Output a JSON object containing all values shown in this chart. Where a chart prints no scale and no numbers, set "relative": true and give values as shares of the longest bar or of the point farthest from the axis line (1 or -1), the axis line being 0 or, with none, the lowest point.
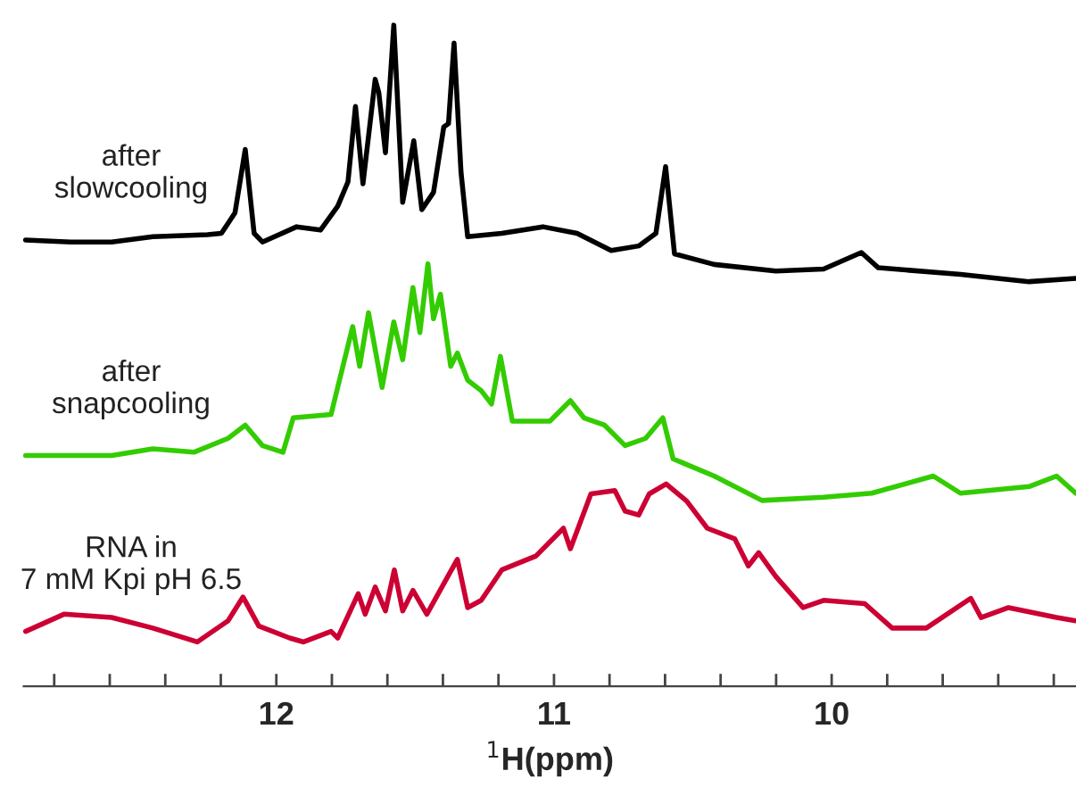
{
  "chart_data": {
    "type": "line",
    "relative": true,
    "xlabel": "$^{1}$H(ppm)",
    "xlim": [
      12.91,
      9.12
    ],
    "xticks": [
      {
        "value": 12.8,
        "label": null
      },
      {
        "value": 12.6,
        "label": null
      },
      {
        "value": 12.4,
        "label": null
      },
      {
        "value": 12.2,
        "label": null
      },
      12,
      {
        "value": 11.8,
        "label": null
      },
      {
        "value": 11.6,
        "label": null
      },
      {
        "value": 11.4,
        "label": null
      },
      {
        "value": 11.2,
        "label": null
      },
      11,
      {
        "value": 10.8,
        "label": null
      },
      {
        "value": 10.6,
        "label": null
      },
      {
        "value": 10.4,
        "label": null
      },
      {
        "value": 10.2,
        "label": null
      },
      10,
      {
        "value": 9.8,
        "label": null
      },
      {
        "value": 9.6,
        "label": null
      },
      {
        "value": 9.4,
        "label": null
      },
      {
        "value": 9.2,
        "label": null
      }
    ],
    "tick_labels": "x",
    "grid": false,
    "legend": false,
    "line_style": "solid",
    "marker": "none",
    "series": [
      {
        "name": "after\nslowcooling",
        "color": "#000000",
        "x": [
          12.903,
          12.741,
          12.593,
          12.445,
          12.248,
          12.198,
          12.149,
          12.112,
          12.08,
          12.05,
          11.927,
          11.841,
          11.779,
          11.742,
          11.715,
          11.688,
          11.644,
          11.631,
          11.607,
          11.577,
          11.545,
          11.505,
          11.476,
          11.434,
          11.397,
          11.38,
          11.36,
          11.335,
          11.311,
          11.188,
          11.04,
          10.917,
          10.794,
          10.695,
          10.633,
          10.598,
          10.566,
          10.423,
          10.201,
          10.029,
          9.893,
          9.832,
          9.536,
          9.289,
          9.121
        ],
        "values": [
          0.675,
          0.672,
          0.672,
          0.68,
          0.683,
          0.685,
          0.716,
          0.812,
          0.685,
          0.672,
          0.695,
          0.69,
          0.726,
          0.763,
          0.877,
          0.76,
          0.918,
          0.898,
          0.807,
          1,
          0.732,
          0.825,
          0.721,
          0.747,
          0.846,
          0.851,
          0.973,
          0.778,
          0.68,
          0.685,
          0.695,
          0.685,
          0.659,
          0.666,
          0.685,
          0.786,
          0.654,
          0.638,
          0.628,
          0.631,
          0.656,
          0.633,
          0.623,
          0.612,
          0.617
        ]
      },
      {
        "name": "after\nsnapcooling",
        "color": "#33cc00",
        "x": [
          12.903,
          12.741,
          12.593,
          12.445,
          12.297,
          12.174,
          12.112,
          12.05,
          11.976,
          11.939,
          11.803,
          11.779,
          11.725,
          11.7,
          11.668,
          11.619,
          11.577,
          11.545,
          11.508,
          11.483,
          11.454,
          11.434,
          11.409,
          11.372,
          11.348,
          11.311,
          11.262,
          11.225,
          11.193,
          11.15,
          11.015,
          10.941,
          10.892,
          10.818,
          10.744,
          10.67,
          10.608,
          10.571,
          10.423,
          10.251,
          10.029,
          9.856,
          9.634,
          9.536,
          9.289,
          9.19,
          9.121
        ],
        "values": [
          0.349,
          0.349,
          0.349,
          0.359,
          0.354,
          0.375,
          0.395,
          0.364,
          0.354,
          0.406,
          0.411,
          0.452,
          0.544,
          0.484,
          0.565,
          0.452,
          0.551,
          0.494,
          0.603,
          0.535,
          0.639,
          0.556,
          0.593,
          0.484,
          0.504,
          0.463,
          0.447,
          0.427,
          0.499,
          0.401,
          0.401,
          0.432,
          0.406,
          0.395,
          0.364,
          0.375,
          0.406,
          0.344,
          0.318,
          0.281,
          0.286,
          0.292,
          0.318,
          0.292,
          0.302,
          0.318,
          0.292
        ]
      },
      {
        "name": "RNA in\n7 mM Kpi pH 6.5",
        "color": "#cc0033",
        "x": [
          12.903,
          12.765,
          12.593,
          12.445,
          12.285,
          12.174,
          12.12,
          12.063,
          11.952,
          11.902,
          11.803,
          11.779,
          11.705,
          11.68,
          11.644,
          11.607,
          11.575,
          11.545,
          11.508,
          11.458,
          11.348,
          11.311,
          11.262,
          11.188,
          11.065,
          10.966,
          10.941,
          10.867,
          10.781,
          10.744,
          10.695,
          10.657,
          10.596,
          10.522,
          10.448,
          10.349,
          10.3,
          10.263,
          10.201,
          10.103,
          10.029,
          9.881,
          9.782,
          9.659,
          9.499,
          9.462,
          9.363,
          9.19,
          9.121
        ],
        "values": [
          0.083,
          0.109,
          0.104,
          0.088,
          0.067,
          0.099,
          0.135,
          0.091,
          0.073,
          0.067,
          0.083,
          0.073,
          0.14,
          0.109,
          0.15,
          0.114,
          0.176,
          0.114,
          0.145,
          0.109,
          0.192,
          0.119,
          0.13,
          0.176,
          0.197,
          0.239,
          0.208,
          0.291,
          0.296,
          0.265,
          0.259,
          0.291,
          0.306,
          0.28,
          0.239,
          0.223,
          0.182,
          0.202,
          0.166,
          0.119,
          0.13,
          0.125,
          0.088,
          0.088,
          0.133,
          0.104,
          0.119,
          0.104,
          0.099
        ]
      }
    ]
  }
}
